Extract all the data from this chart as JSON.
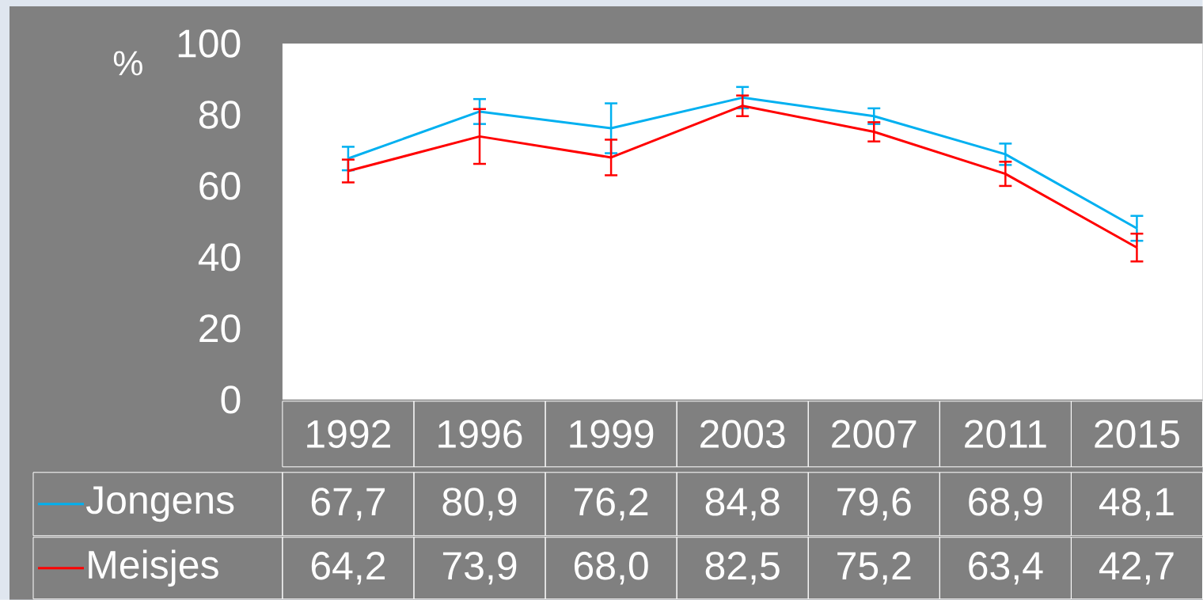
{
  "chart_data": {
    "type": "line",
    "ylabel": "%",
    "categories": [
      "1992",
      "1996",
      "1999",
      "2003",
      "2007",
      "2011",
      "2015"
    ],
    "ylim": [
      0,
      100
    ],
    "yticks": [
      0,
      20,
      40,
      60,
      80,
      100
    ],
    "marker": "none",
    "line_style": "solid",
    "legend": "bottom left",
    "series": [
      {
        "name": "Jongens",
        "color": "#00b0f0",
        "values": [
          67.7,
          80.9,
          76.2,
          84.8,
          79.6,
          68.9,
          48.1
        ],
        "value_labels": [
          "67,7",
          "80,9",
          "76,2",
          "84,8",
          "79,6",
          "68,9",
          "48,1"
        ],
        "errors": [
          3.3,
          3.5,
          7.0,
          3.0,
          2.2,
          3.0,
          3.5
        ]
      },
      {
        "name": "Meisjes",
        "color": "#ff0000",
        "values": [
          64.2,
          73.9,
          68.0,
          82.5,
          75.2,
          63.4,
          42.7
        ],
        "value_labels": [
          "64,2",
          "73,9",
          "68,0",
          "82,5",
          "75,2",
          "63,4",
          "42,7"
        ],
        "errors": [
          3.2,
          7.7,
          5.0,
          2.9,
          2.7,
          3.4,
          3.9
        ]
      }
    ]
  }
}
